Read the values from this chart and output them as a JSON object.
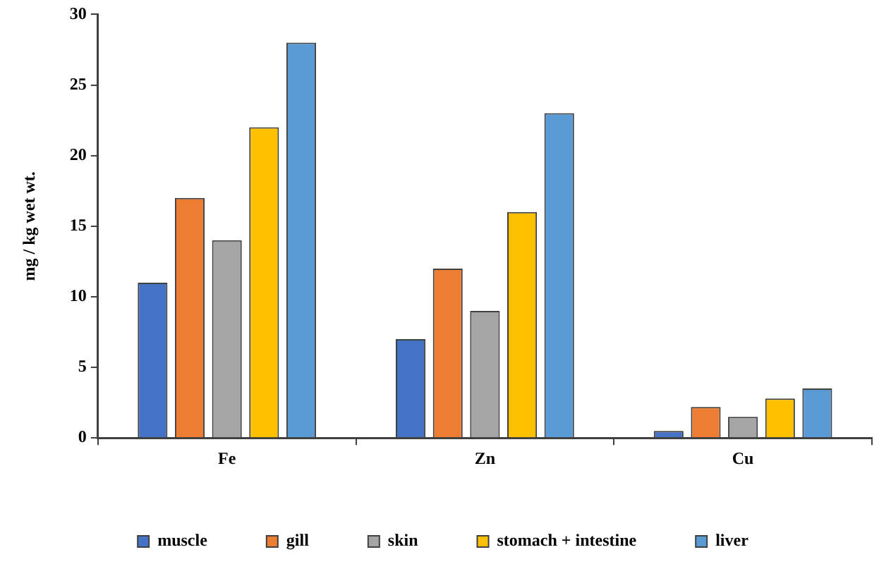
{
  "chart_data": {
    "type": "bar",
    "ylabel": "mg / kg wet wt.",
    "categories": [
      "Fe",
      "Zn",
      "Cu"
    ],
    "series": [
      {
        "name": "muscle",
        "color": "#4472c4",
        "values": [
          11,
          7,
          0.5
        ]
      },
      {
        "name": "gill",
        "color": "#ed7d31",
        "values": [
          17,
          12,
          2.2
        ]
      },
      {
        "name": "skin",
        "color": "#a5a5a5",
        "values": [
          14,
          9,
          1.5
        ]
      },
      {
        "name": "stomach + intestine",
        "color": "#ffc000",
        "values": [
          22,
          16,
          2.8
        ]
      },
      {
        "name": "liver",
        "color": "#5b9bd5",
        "values": [
          28,
          23,
          3.5
        ]
      }
    ],
    "ylim": [
      0,
      30
    ],
    "yticks": [
      0,
      5,
      10,
      15,
      20,
      25,
      30
    ],
    "grid": false,
    "legend": "bottom"
  }
}
